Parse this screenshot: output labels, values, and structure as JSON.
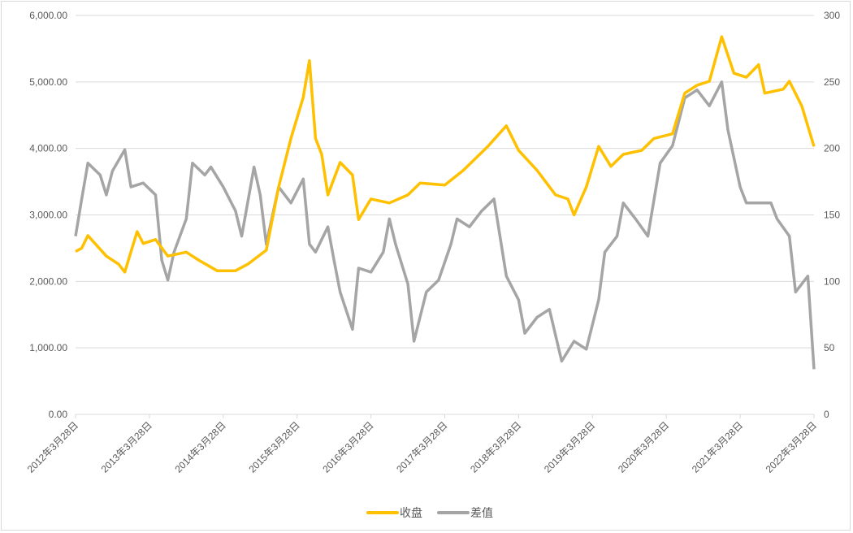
{
  "chart_data": {
    "type": "line",
    "title": "",
    "xlabel": "",
    "ylabel": "",
    "y2label": "",
    "x_ticks": [
      "2012年3月28日",
      "2013年3月28日",
      "2014年3月28日",
      "2015年3月28日",
      "2016年3月28日",
      "2017年3月28日",
      "2018年3月28日",
      "2019年3月28日",
      "2020年3月28日",
      "2021年3月28日",
      "2022年3月28日"
    ],
    "ylim": [
      0,
      6000
    ],
    "y_ticks": [
      "0.00",
      "1,000.00",
      "2,000.00",
      "3,000.00",
      "4,000.00",
      "5,000.00",
      "6,000.00"
    ],
    "y2lim": [
      0,
      300
    ],
    "y2_ticks": [
      "0",
      "50",
      "100",
      "150",
      "200",
      "250",
      "300"
    ],
    "grid": true,
    "legend_position": "bottom",
    "series": [
      {
        "name": "收盘",
        "axis": "left",
        "color": "#FFC000",
        "points": [
          [
            "2012-03",
            2450
          ],
          [
            "2012-04",
            2500
          ],
          [
            "2012-05",
            2690
          ],
          [
            "2012-08",
            2380
          ],
          [
            "2012-10",
            2260
          ],
          [
            "2012-11",
            2140
          ],
          [
            "2013-01",
            2750
          ],
          [
            "2013-02",
            2570
          ],
          [
            "2013-04",
            2630
          ],
          [
            "2013-06",
            2380
          ],
          [
            "2013-09",
            2440
          ],
          [
            "2013-11",
            2320
          ],
          [
            "2014-02",
            2160
          ],
          [
            "2014-05",
            2160
          ],
          [
            "2014-07",
            2260
          ],
          [
            "2014-10",
            2470
          ],
          [
            "2014-12",
            3420
          ],
          [
            "2015-02",
            4150
          ],
          [
            "2015-04",
            4770
          ],
          [
            "2015-05",
            5320
          ],
          [
            "2015-06",
            4150
          ],
          [
            "2015-07",
            3910
          ],
          [
            "2015-08",
            3300
          ],
          [
            "2015-10",
            3790
          ],
          [
            "2015-12",
            3600
          ],
          [
            "2016-01",
            2930
          ],
          [
            "2016-03",
            3240
          ],
          [
            "2016-06",
            3180
          ],
          [
            "2016-09",
            3300
          ],
          [
            "2016-11",
            3480
          ],
          [
            "2017-03",
            3450
          ],
          [
            "2017-06",
            3670
          ],
          [
            "2017-10",
            4030
          ],
          [
            "2018-01",
            4340
          ],
          [
            "2018-03",
            3970
          ],
          [
            "2018-06",
            3670
          ],
          [
            "2018-09",
            3300
          ],
          [
            "2018-11",
            3240
          ],
          [
            "2018-12",
            3000
          ],
          [
            "2019-02",
            3420
          ],
          [
            "2019-04",
            4030
          ],
          [
            "2019-06",
            3730
          ],
          [
            "2019-08",
            3910
          ],
          [
            "2019-11",
            3970
          ],
          [
            "2020-01",
            4150
          ],
          [
            "2020-04",
            4220
          ],
          [
            "2020-06",
            4830
          ],
          [
            "2020-08",
            4950
          ],
          [
            "2020-10",
            5010
          ],
          [
            "2020-12",
            5680
          ],
          [
            "2021-02",
            5130
          ],
          [
            "2021-04",
            5070
          ],
          [
            "2021-06",
            5260
          ],
          [
            "2021-07",
            4830
          ],
          [
            "2021-10",
            4890
          ],
          [
            "2021-11",
            5010
          ],
          [
            "2022-01",
            4640
          ],
          [
            "2022-03",
            4030
          ]
        ]
      },
      {
        "name": "差值",
        "axis": "right",
        "color": "#A5A5A5",
        "points": [
          [
            "2012-03",
            134
          ],
          [
            "2012-04",
            162
          ],
          [
            "2012-05",
            189
          ],
          [
            "2012-07",
            180
          ],
          [
            "2012-08",
            165
          ],
          [
            "2012-09",
            183
          ],
          [
            "2012-11",
            199
          ],
          [
            "2012-12",
            171
          ],
          [
            "2013-02",
            174
          ],
          [
            "2013-04",
            165
          ],
          [
            "2013-05",
            116
          ],
          [
            "2013-06",
            101
          ],
          [
            "2013-07",
            122
          ],
          [
            "2013-09",
            147
          ],
          [
            "2013-10",
            189
          ],
          [
            "2013-12",
            180
          ],
          [
            "2014-01",
            186
          ],
          [
            "2014-03",
            171
          ],
          [
            "2014-05",
            153
          ],
          [
            "2014-06",
            134
          ],
          [
            "2014-08",
            186
          ],
          [
            "2014-09",
            165
          ],
          [
            "2014-10",
            128
          ],
          [
            "2014-12",
            171
          ],
          [
            "2015-02",
            159
          ],
          [
            "2015-04",
            177
          ],
          [
            "2015-05",
            128
          ],
          [
            "2015-06",
            122
          ],
          [
            "2015-08",
            141
          ],
          [
            "2015-09",
            116
          ],
          [
            "2015-10",
            92
          ],
          [
            "2015-12",
            64
          ],
          [
            "2016-01",
            110
          ],
          [
            "2016-03",
            107
          ],
          [
            "2016-05",
            122
          ],
          [
            "2016-06",
            147
          ],
          [
            "2016-07",
            128
          ],
          [
            "2016-09",
            98
          ],
          [
            "2016-10",
            55
          ],
          [
            "2016-12",
            92
          ],
          [
            "2017-02",
            101
          ],
          [
            "2017-04",
            128
          ],
          [
            "2017-05",
            147
          ],
          [
            "2017-07",
            141
          ],
          [
            "2017-09",
            153
          ],
          [
            "2017-11",
            162
          ],
          [
            "2018-01",
            104
          ],
          [
            "2018-03",
            86
          ],
          [
            "2018-04",
            61
          ],
          [
            "2018-06",
            73
          ],
          [
            "2018-08",
            79
          ],
          [
            "2018-10",
            40
          ],
          [
            "2018-12",
            55
          ],
          [
            "2019-02",
            49
          ],
          [
            "2019-04",
            86
          ],
          [
            "2019-05",
            122
          ],
          [
            "2019-07",
            134
          ],
          [
            "2019-08",
            159
          ],
          [
            "2019-10",
            147
          ],
          [
            "2019-12",
            134
          ],
          [
            "2020-02",
            189
          ],
          [
            "2020-04",
            202
          ],
          [
            "2020-06",
            238
          ],
          [
            "2020-08",
            244
          ],
          [
            "2020-10",
            232
          ],
          [
            "2020-12",
            250
          ],
          [
            "2021-01",
            214
          ],
          [
            "2021-03",
            171
          ],
          [
            "2021-04",
            159
          ],
          [
            "2021-06",
            159
          ],
          [
            "2021-08",
            159
          ],
          [
            "2021-09",
            147
          ],
          [
            "2021-11",
            134
          ],
          [
            "2021-12",
            92
          ],
          [
            "2022-02",
            104
          ],
          [
            "2022-03",
            34
          ]
        ]
      }
    ]
  }
}
